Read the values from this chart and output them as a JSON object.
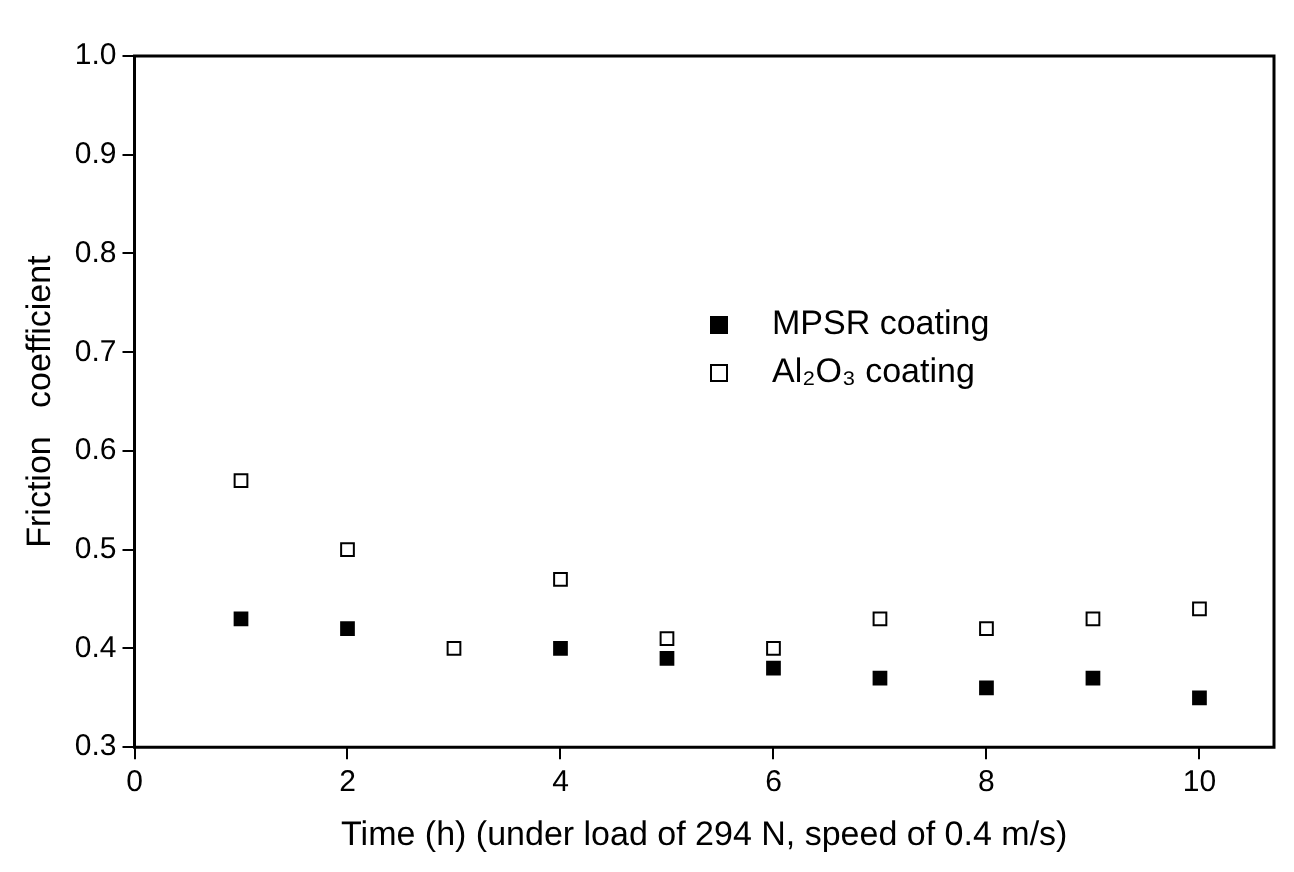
{
  "chart_data": {
    "type": "scatter",
    "xlabel": "Time (h) (under load of 294 N, speed of 0.4 m/s)",
    "ylabel": "Friction   coefficient",
    "x": [
      1,
      2,
      3,
      4,
      5,
      6,
      7,
      8,
      9,
      10
    ],
    "series": [
      {
        "name": "MPSR coating",
        "color": "#000000",
        "values": [
          0.43,
          0.42,
          null,
          0.4,
          0.39,
          0.38,
          0.37,
          0.36,
          0.37,
          0.35
        ]
      },
      {
        "name": "Al₂O₃ coating",
        "color": "#000000",
        "values": [
          0.57,
          0.5,
          0.4,
          0.47,
          0.41,
          0.4,
          0.43,
          0.42,
          0.43,
          0.44
        ]
      }
    ],
    "xlim": [
      0,
      10.7
    ],
    "xticks": [
      0,
      2,
      4,
      6,
      8,
      10
    ],
    "ylim": [
      0.3,
      1.0
    ],
    "yticks": [
      0.3,
      0.4,
      0.5,
      0.6,
      0.7,
      0.8,
      0.9,
      {
        "value": 1,
        "label": "1.0"
      }
    ],
    "grid": false,
    "legend": "top right",
    "marker": "square"
  }
}
